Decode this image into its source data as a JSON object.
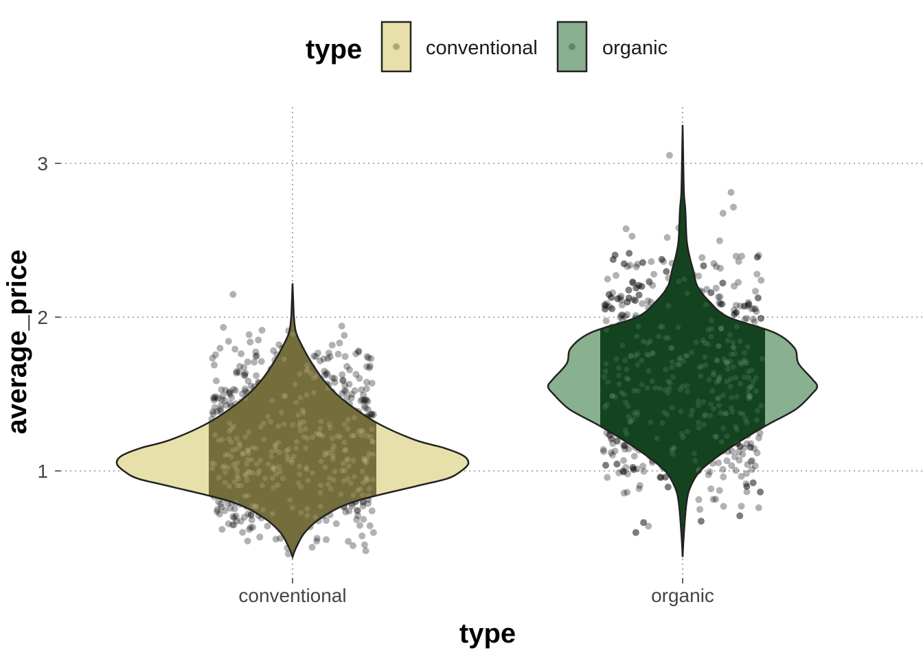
{
  "chart_data": {
    "type": "violin",
    "xlabel": "type",
    "ylabel": "average_price",
    "categories": [
      "conventional",
      "organic"
    ],
    "ylim": [
      0.3,
      3.35
    ],
    "y_ticks": [
      1,
      2,
      3
    ],
    "grid": true,
    "legend": {
      "title": "type",
      "position": "top",
      "entries": [
        {
          "label": "conventional",
          "color": "#E8E0AA"
        },
        {
          "label": "organic",
          "color": "#89B08F"
        }
      ]
    },
    "series": [
      {
        "category": "conventional",
        "fill": "#E8E0AA",
        "inner_fill": "#6B6434",
        "range": [
          0.44,
          2.22
        ],
        "jitter_points_range": [
          0.46,
          2.22
        ],
        "density_profile": [
          [
            0.44,
            0.0
          ],
          [
            0.5,
            0.02
          ],
          [
            0.6,
            0.07
          ],
          [
            0.7,
            0.17
          ],
          [
            0.8,
            0.35
          ],
          [
            0.9,
            0.7
          ],
          [
            0.95,
            0.88
          ],
          [
            1.0,
            0.96
          ],
          [
            1.05,
            1.0
          ],
          [
            1.1,
            0.97
          ],
          [
            1.15,
            0.86
          ],
          [
            1.2,
            0.7
          ],
          [
            1.3,
            0.5
          ],
          [
            1.4,
            0.36
          ],
          [
            1.5,
            0.25
          ],
          [
            1.6,
            0.17
          ],
          [
            1.7,
            0.11
          ],
          [
            1.8,
            0.06
          ],
          [
            1.9,
            0.02
          ],
          [
            2.0,
            0.008
          ],
          [
            2.1,
            0.004
          ],
          [
            2.22,
            0.0
          ]
        ]
      },
      {
        "category": "organic",
        "fill": "#89B08F",
        "inner_fill": "#0A3B17",
        "range": [
          0.44,
          3.25
        ],
        "jitter_points_range": [
          0.44,
          3.25
        ],
        "density_profile": [
          [
            0.44,
            0.0
          ],
          [
            0.6,
            0.01
          ],
          [
            0.8,
            0.03
          ],
          [
            0.9,
            0.06
          ],
          [
            1.0,
            0.13
          ],
          [
            1.1,
            0.27
          ],
          [
            1.2,
            0.44
          ],
          [
            1.3,
            0.63
          ],
          [
            1.4,
            0.84
          ],
          [
            1.5,
            0.96
          ],
          [
            1.55,
            1.0
          ],
          [
            1.6,
            0.96
          ],
          [
            1.7,
            0.86
          ],
          [
            1.8,
            0.83
          ],
          [
            1.9,
            0.68
          ],
          [
            2.0,
            0.34
          ],
          [
            2.1,
            0.2
          ],
          [
            2.2,
            0.11
          ],
          [
            2.3,
            0.08
          ],
          [
            2.4,
            0.05
          ],
          [
            2.5,
            0.03
          ],
          [
            2.7,
            0.02
          ],
          [
            2.8,
            0.01
          ],
          [
            3.0,
            0.005
          ],
          [
            3.25,
            0.0
          ]
        ]
      }
    ]
  }
}
